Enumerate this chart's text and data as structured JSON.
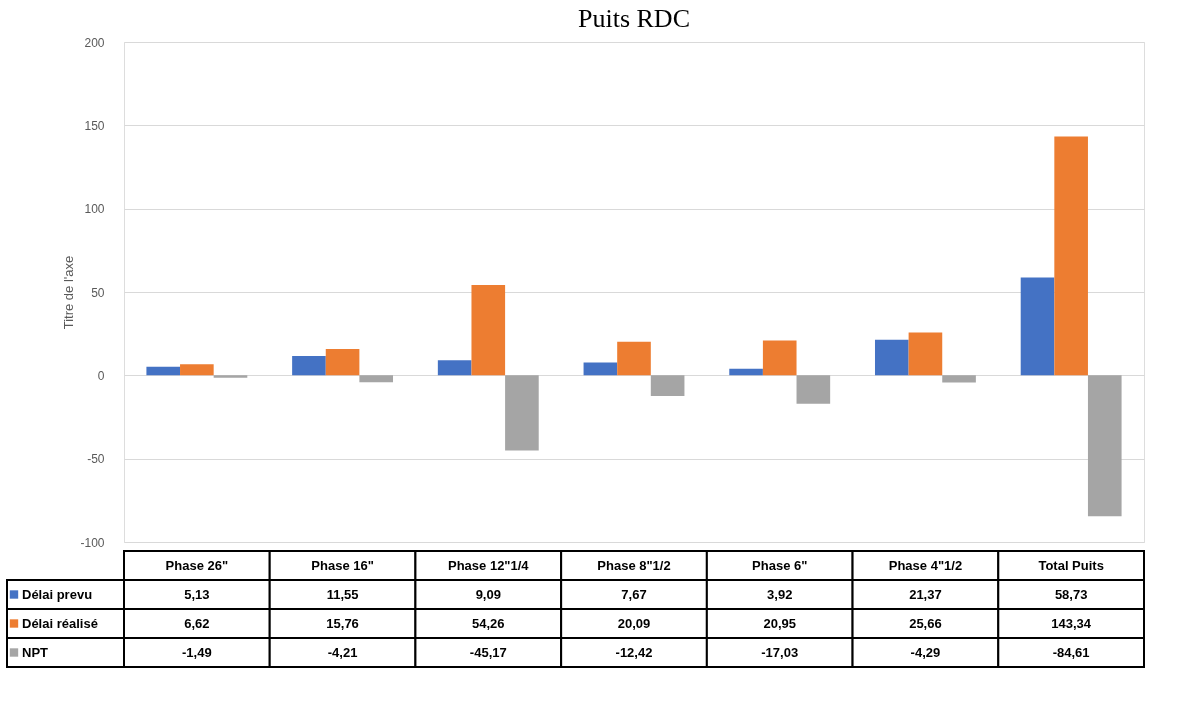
{
  "chart_data": {
    "type": "bar",
    "title": "Puits RDC",
    "ylabel": "Titre de l'axe",
    "categories": [
      "Phase 26\"",
      "Phase 16\"",
      "Phase 12\"1/4",
      "Phase 8\"1/2",
      "Phase 6\"",
      "Phase 4\"1/2",
      "Total Puits"
    ],
    "series": [
      {
        "name": "Délai prevu",
        "color": "#4472c4",
        "values": [
          5.13,
          11.55,
          9.09,
          7.67,
          3.92,
          21.37,
          58.73
        ],
        "value_labels": [
          "5,13",
          "11,55",
          "9,09",
          "7,67",
          "3,92",
          "21,37",
          "58,73"
        ]
      },
      {
        "name": "Délai réalisé",
        "color": "#ed7d31",
        "values": [
          6.62,
          15.76,
          54.26,
          20.09,
          20.95,
          25.66,
          143.34
        ],
        "value_labels": [
          "6,62",
          "15,76",
          "54,26",
          "20,09",
          "20,95",
          "25,66",
          "143,34"
        ]
      },
      {
        "name": "NPT",
        "color": "#a5a5a5",
        "values": [
          -1.49,
          -4.21,
          -45.17,
          -12.42,
          -17.03,
          -4.29,
          -84.61
        ],
        "value_labels": [
          "-1,49",
          "-4,21",
          "-45,17",
          "-12,42",
          "-17,03",
          "-4,29",
          "-84,61"
        ]
      }
    ],
    "ylim": [
      -100,
      200
    ],
    "yticks": [
      -100,
      -50,
      0,
      50,
      100,
      150,
      200
    ],
    "grid": "y",
    "legend": "left"
  }
}
